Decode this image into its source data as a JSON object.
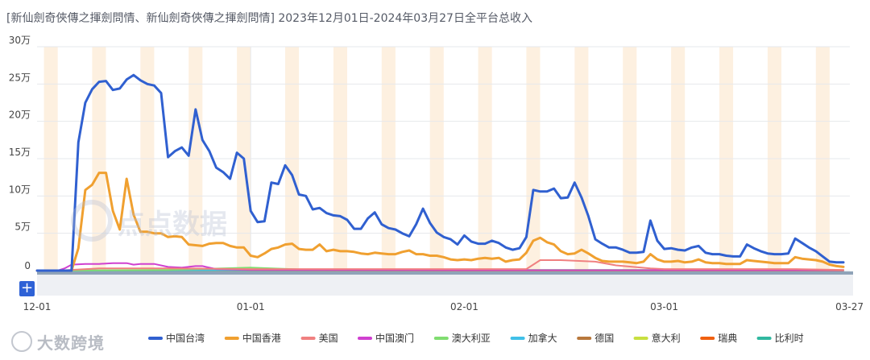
{
  "title": "[新仙劍奇俠傳之揮劍問情、新仙劍奇俠傳之揮劍問情]  2023年12月01日-2024年03月27日全平台总收入",
  "add_button_label": "+",
  "watermark_text": "大数跨境",
  "center_watermark_text": "点点数据",
  "chart_data": {
    "type": "line",
    "title": "[新仙劍奇俠傳之揮劍問情、新仙劍奇俠傳之揮劍問情]  2023年12月01日-2024年03月27日全平台总收入",
    "x_start": "2023-12-01",
    "x_end": "2024-03-27",
    "x_tick_labels": [
      "12-01",
      "01-01",
      "02-01",
      "03-01",
      "03-27"
    ],
    "y_tick_labels": [
      "0",
      "5万",
      "10万",
      "15万",
      "20万",
      "25万",
      "30万"
    ],
    "ylim": [
      0,
      300000
    ],
    "grid": true,
    "legend_position": "bottom",
    "colors": {
      "中国台湾": "#3060d0",
      "中国香港": "#f0a030",
      "美国": "#f08080",
      "中国澳门": "#d040d0",
      "澳大利亚": "#80dd70",
      "加拿大": "#40c0e8",
      "德国": "#b8783c",
      "意大利": "#c8e040",
      "瑞典": "#f06010",
      "比利时": "#30b8a0"
    },
    "series": [
      {
        "name": "中国台湾",
        "dates": [
          "2023-12-01",
          "2023-12-04",
          "2023-12-05",
          "2023-12-06",
          "2023-12-07",
          "2023-12-08",
          "2023-12-09",
          "2023-12-10",
          "2023-12-11",
          "2023-12-12",
          "2023-12-13",
          "2023-12-14",
          "2023-12-15",
          "2023-12-16",
          "2023-12-17",
          "2023-12-18",
          "2023-12-19",
          "2023-12-20",
          "2023-12-21",
          "2023-12-22",
          "2023-12-23",
          "2023-12-24",
          "2023-12-25",
          "2023-12-26",
          "2023-12-27",
          "2023-12-28",
          "2023-12-29",
          "2023-12-30",
          "2023-12-31",
          "2024-01-01",
          "2024-01-02",
          "2024-01-03",
          "2024-01-04",
          "2024-01-05",
          "2024-01-06",
          "2024-01-07",
          "2024-01-08",
          "2024-01-09",
          "2024-01-10",
          "2024-01-11",
          "2024-01-12",
          "2024-01-13",
          "2024-01-14",
          "2024-01-15",
          "2024-01-16",
          "2024-01-17",
          "2024-01-18",
          "2024-01-19",
          "2024-01-20",
          "2024-01-21",
          "2024-01-22",
          "2024-01-23",
          "2024-01-24",
          "2024-01-25",
          "2024-01-26",
          "2024-01-27",
          "2024-01-28",
          "2024-01-29",
          "2024-01-30",
          "2024-01-31",
          "2024-02-01",
          "2024-02-02",
          "2024-02-03",
          "2024-02-04",
          "2024-02-05",
          "2024-02-06",
          "2024-02-07",
          "2024-02-08",
          "2024-02-09",
          "2024-02-10",
          "2024-02-11",
          "2024-02-12",
          "2024-02-13",
          "2024-02-14",
          "2024-02-15",
          "2024-02-16",
          "2024-02-17",
          "2024-02-18",
          "2024-02-19",
          "2024-02-20",
          "2024-02-21",
          "2024-02-22",
          "2024-02-23",
          "2024-02-24",
          "2024-02-25",
          "2024-02-26",
          "2024-02-27",
          "2024-02-28",
          "2024-02-29",
          "2024-03-01",
          "2024-03-02",
          "2024-03-03",
          "2024-03-04",
          "2024-03-05",
          "2024-03-06",
          "2024-03-07",
          "2024-03-08",
          "2024-03-09",
          "2024-03-10",
          "2024-03-11",
          "2024-03-12",
          "2024-03-13",
          "2024-03-14",
          "2024-03-15",
          "2024-03-16",
          "2024-03-17",
          "2024-03-18",
          "2024-03-19",
          "2024-03-20",
          "2024-03-21",
          "2024-03-22",
          "2024-03-23",
          "2024-03-24",
          "2024-03-25",
          "2024-03-26",
          "2024-03-27"
        ],
        "values": [
          0,
          0,
          0,
          0,
          172000,
          225000,
          243000,
          253000,
          254000,
          242000,
          244000,
          256000,
          262000,
          255000,
          250000,
          248000,
          238000,
          152000,
          160000,
          165000,
          154000,
          216000,
          175000,
          160000,
          138000,
          132000,
          123000,
          158000,
          150000,
          80000,
          65000,
          66000,
          118000,
          116000,
          141000,
          128000,
          102000,
          100000,
          82000,
          84000,
          77000,
          74000,
          73000,
          68000,
          56000,
          56000,
          70000,
          78000,
          62000,
          57000,
          55000,
          50000,
          46000,
          62000,
          83000,
          64000,
          51000,
          45000,
          42000,
          35000,
          47000,
          39000,
          36000,
          36000,
          40000,
          37000,
          31000,
          28000,
          30000,
          45000,
          108000,
          106000,
          106000,
          110000,
          97000,
          98000,
          118000,
          98000,
          73000,
          42000,
          36000,
          31000,
          31000,
          28000,
          24000,
          24000,
          25000,
          67000,
          40000,
          29000,
          30000,
          28000,
          27000,
          31000,
          33000,
          24000,
          22000,
          22000,
          20000,
          19000,
          19000,
          35000,
          30000,
          26000,
          23000,
          22000,
          22000,
          23000,
          43000,
          37000,
          31000,
          26000,
          19000,
          12000,
          11000,
          11000
        ]
      },
      {
        "name": "中国香港",
        "dates": [
          "2023-12-01",
          "2023-12-04",
          "2023-12-05",
          "2023-12-06",
          "2023-12-07",
          "2023-12-08",
          "2023-12-09",
          "2023-12-10",
          "2023-12-11",
          "2023-12-12",
          "2023-12-13",
          "2023-12-14",
          "2023-12-15",
          "2023-12-16",
          "2023-12-17",
          "2023-12-18",
          "2023-12-19",
          "2023-12-20",
          "2023-12-21",
          "2023-12-22",
          "2023-12-23",
          "2023-12-24",
          "2023-12-25",
          "2023-12-26",
          "2023-12-27",
          "2023-12-28",
          "2023-12-29",
          "2023-12-30",
          "2023-12-31",
          "2024-01-01",
          "2024-01-02",
          "2024-01-03",
          "2024-01-04",
          "2024-01-05",
          "2024-01-06",
          "2024-01-07",
          "2024-01-08",
          "2024-01-09",
          "2024-01-10",
          "2024-01-11",
          "2024-01-12",
          "2024-01-13",
          "2024-01-14",
          "2024-01-15",
          "2024-01-16",
          "2024-01-17",
          "2024-01-18",
          "2024-01-19",
          "2024-01-20",
          "2024-01-21",
          "2024-01-22",
          "2024-01-23",
          "2024-01-24",
          "2024-01-25",
          "2024-01-26",
          "2024-01-27",
          "2024-01-28",
          "2024-01-29",
          "2024-01-30",
          "2024-01-31",
          "2024-02-01",
          "2024-02-02",
          "2024-02-03",
          "2024-02-04",
          "2024-02-05",
          "2024-02-06",
          "2024-02-07",
          "2024-02-08",
          "2024-02-09",
          "2024-02-10",
          "2024-02-11",
          "2024-02-12",
          "2024-02-13",
          "2024-02-14",
          "2024-02-15",
          "2024-02-16",
          "2024-02-17",
          "2024-02-18",
          "2024-02-19",
          "2024-02-20",
          "2024-02-21",
          "2024-02-22",
          "2024-02-23",
          "2024-02-24",
          "2024-02-25",
          "2024-02-26",
          "2024-02-27",
          "2024-02-28",
          "2024-02-29",
          "2024-03-01",
          "2024-03-02",
          "2024-03-03",
          "2024-03-04",
          "2024-03-05",
          "2024-03-06",
          "2024-03-07",
          "2024-03-08",
          "2024-03-09",
          "2024-03-10",
          "2024-03-11",
          "2024-03-12",
          "2024-03-13",
          "2024-03-14",
          "2024-03-15",
          "2024-03-16",
          "2024-03-17",
          "2024-03-18",
          "2024-03-19",
          "2024-03-20",
          "2024-03-21",
          "2024-03-22",
          "2024-03-23",
          "2024-03-24",
          "2024-03-25",
          "2024-03-26",
          "2024-03-27"
        ],
        "values": [
          0,
          0,
          0,
          0,
          30000,
          108000,
          115000,
          131000,
          131000,
          80000,
          55000,
          123000,
          75000,
          52000,
          52000,
          50000,
          50000,
          45000,
          46000,
          45000,
          35000,
          34000,
          33000,
          36000,
          37000,
          37000,
          33000,
          31000,
          31000,
          20000,
          18000,
          23000,
          29000,
          31000,
          35000,
          36000,
          29000,
          28000,
          28000,
          35000,
          26000,
          28000,
          26000,
          26000,
          25000,
          23000,
          22000,
          24000,
          23000,
          22000,
          22000,
          25000,
          27000,
          22000,
          22000,
          20000,
          20000,
          18000,
          15000,
          14000,
          15000,
          14000,
          16000,
          17000,
          16000,
          17000,
          12000,
          14000,
          15000,
          24000,
          40000,
          44000,
          38000,
          35000,
          26000,
          22000,
          23000,
          28000,
          23000,
          17000,
          13000,
          12000,
          12000,
          12000,
          11000,
          10000,
          12000,
          22000,
          15000,
          12000,
          12000,
          13000,
          11000,
          12000,
          15000,
          11000,
          10000,
          10000,
          9000,
          9000,
          9000,
          14000,
          13000,
          12000,
          11000,
          10000,
          10000,
          10000,
          18000,
          16000,
          15000,
          14000,
          12000,
          8000,
          6000,
          5000
        ]
      },
      {
        "name": "美国",
        "dates": [
          "2023-12-01",
          "2023-12-04",
          "2023-12-10",
          "2023-12-20",
          "2024-01-01",
          "2024-01-15",
          "2024-02-01",
          "2024-02-10",
          "2024-02-12",
          "2024-02-15",
          "2024-02-20",
          "2024-02-23",
          "2024-02-28",
          "2024-03-01",
          "2024-03-10",
          "2024-03-20",
          "2024-03-27"
        ],
        "values": [
          0,
          0,
          3000,
          3000,
          2000,
          2000,
          2000,
          2000,
          14000,
          14000,
          12000,
          7000,
          3000,
          2000,
          2000,
          2000,
          1000
        ]
      },
      {
        "name": "中国澳门",
        "dates": [
          "2023-12-01",
          "2023-12-04",
          "2023-12-05",
          "2023-12-06",
          "2023-12-08",
          "2023-12-10",
          "2023-12-12",
          "2023-12-14",
          "2023-12-15",
          "2023-12-16",
          "2023-12-18",
          "2023-12-20",
          "2023-12-22",
          "2023-12-24",
          "2023-12-25",
          "2023-12-27",
          "2024-01-01",
          "2024-02-01",
          "2024-03-01",
          "2024-03-27"
        ],
        "values": [
          0,
          0,
          3000,
          8000,
          9000,
          9000,
          10000,
          10000,
          8000,
          9000,
          9000,
          5000,
          4000,
          6000,
          6000,
          2000,
          1000,
          500,
          500,
          500
        ]
      },
      {
        "name": "澳大利亚",
        "dates": [
          "2023-12-01",
          "2023-12-04",
          "2023-12-20",
          "2024-01-01",
          "2024-01-10",
          "2024-02-01",
          "2024-03-01",
          "2024-03-27"
        ],
        "values": [
          0,
          0,
          1000,
          4000,
          1000,
          1000,
          1000,
          500
        ]
      },
      {
        "name": "加拿大",
        "dates": [
          "2023-12-01",
          "2024-01-01",
          "2024-02-01",
          "2024-03-01",
          "2024-03-27"
        ],
        "values": [
          0,
          500,
          500,
          500,
          500
        ]
      },
      {
        "name": "德国",
        "dates": [
          "2023-12-01",
          "2024-01-01",
          "2024-02-01",
          "2024-03-01",
          "2024-03-27"
        ],
        "values": [
          0,
          300,
          300,
          300,
          300
        ]
      },
      {
        "name": "意大利",
        "dates": [
          "2023-12-01",
          "2024-01-01",
          "2024-02-01",
          "2024-03-01",
          "2024-03-27"
        ],
        "values": [
          0,
          200,
          200,
          200,
          200
        ]
      },
      {
        "name": "瑞典",
        "dates": [
          "2023-12-01",
          "2024-01-01",
          "2024-02-01",
          "2024-03-01",
          "2024-03-27"
        ],
        "values": [
          0,
          200,
          200,
          200,
          200
        ]
      },
      {
        "name": "比利时",
        "dates": [
          "2023-12-01",
          "2024-01-01",
          "2024-02-01",
          "2024-03-01",
          "2024-03-27"
        ],
        "values": [
          0,
          100,
          100,
          100,
          100
        ]
      }
    ]
  }
}
